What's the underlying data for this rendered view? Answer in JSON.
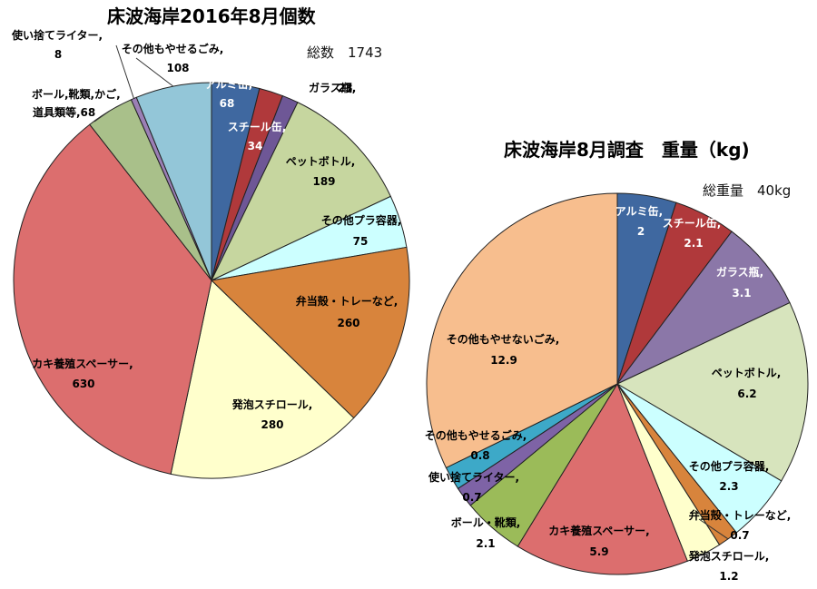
{
  "chart_data": [
    {
      "type": "pie",
      "title": "床波海岸2016年8月個数",
      "total_text": "総数　1743",
      "slices": [
        {
          "name": "アルミ缶,",
          "value": 68,
          "display": "68",
          "color": "#3F68A0",
          "text_color": "#ffffff"
        },
        {
          "name": "スチール缶,",
          "value": 34,
          "display": "34",
          "color": "#B0393B",
          "text_color": "#ffffff"
        },
        {
          "name": "ガラス瓶,",
          "value": 23,
          "display": "23",
          "color": "#6E5796",
          "text_color": "#000000"
        },
        {
          "name": "ペットボトル,",
          "value": 189,
          "display": "189",
          "color": "#C6D69F",
          "text_color": "#000000"
        },
        {
          "name": "その他プラ容器,",
          "value": 75,
          "display": "75",
          "color": "#CCFFFF",
          "text_color": "#000000"
        },
        {
          "name": "弁当殻・トレーなど,",
          "value": 260,
          "display": "260",
          "color": "#D8843C",
          "text_color": "#000000"
        },
        {
          "name": "発泡スチロール,",
          "value": 280,
          "display": "280",
          "color": "#FFFFCC",
          "text_color": "#000000"
        },
        {
          "name": "カキ養殖スペーサー,",
          "value": 630,
          "display": "630",
          "color": "#DC6E6E",
          "text_color": "#000000"
        },
        {
          "name": "ボール,靴類,かご,道具類等,",
          "value": 68,
          "display": "68",
          "color": "#A9C08A",
          "text_color": "#000000"
        },
        {
          "name": "使い捨てライター,",
          "value": 8,
          "display": "8",
          "color": "#9B7FB5",
          "text_color": "#000000"
        },
        {
          "name": "その他もやせるごみ,",
          "value": 108,
          "display": "108",
          "color": "#93C6D8",
          "text_color": "#000000"
        }
      ]
    },
    {
      "type": "pie",
      "title": "床波海岸8月調査　重量（kg)",
      "total_text": "総重量　40kg",
      "slices": [
        {
          "name": "アルミ缶,",
          "value": 2,
          "display": "2",
          "color": "#3F68A0",
          "text_color": "#ffffff"
        },
        {
          "name": "スチール缶,",
          "value": 2.1,
          "display": "2.1",
          "color": "#B0393B",
          "text_color": "#ffffff"
        },
        {
          "name": "ガラス瓶,",
          "value": 3.1,
          "display": "3.1",
          "color": "#8B77A8",
          "text_color": "#ffffff"
        },
        {
          "name": "ペットボトル,",
          "value": 6.2,
          "display": "6.2",
          "color": "#D7E4BD",
          "text_color": "#000000"
        },
        {
          "name": "その他プラ容器,",
          "value": 2.3,
          "display": "2.3",
          "color": "#CCFFFF",
          "text_color": "#000000"
        },
        {
          "name": "弁当殻・トレーなど,",
          "value": 0.7,
          "display": "0.7",
          "color": "#D8843C",
          "text_color": "#000000"
        },
        {
          "name": "発泡スチロール,",
          "value": 1.2,
          "display": "1.2",
          "color": "#FFFFCC",
          "text_color": "#000000"
        },
        {
          "name": "カキ養殖スペーサー,",
          "value": 5.9,
          "display": "5.9",
          "color": "#DC6E6E",
          "text_color": "#000000"
        },
        {
          "name": "ボール・靴類,",
          "value": 2.1,
          "display": "2.1",
          "color": "#9BBB59",
          "text_color": "#000000"
        },
        {
          "name": "使い捨てライター,",
          "value": 0.7,
          "display": "0.7",
          "color": "#7E63A6",
          "text_color": "#000000"
        },
        {
          "name": "その他もやせるごみ,",
          "value": 0.8,
          "display": "0.8",
          "color": "#3DA9C8",
          "text_color": "#000000"
        },
        {
          "name": "その他もやせないごみ,",
          "value": 12.9,
          "display": "12.9",
          "color": "#F7BE8E",
          "text_color": "#000000"
        }
      ]
    }
  ]
}
